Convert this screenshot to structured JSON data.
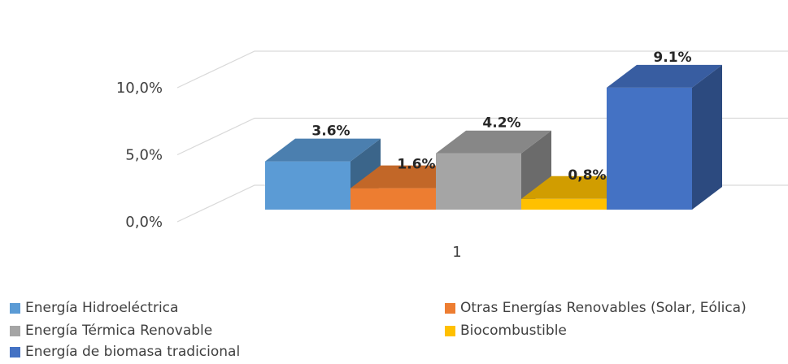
{
  "chart_data": {
    "type": "bar",
    "categories": [
      "1"
    ],
    "series": [
      {
        "name": "Energía Hidroeléctrica",
        "values": [
          3.6
        ],
        "label": "3.6%",
        "color": "#5b9bd5"
      },
      {
        "name": "Otras Energías Renovables (Solar, Eólica)",
        "values": [
          1.6
        ],
        "label": "1.6%",
        "color": "#ed7d31"
      },
      {
        "name": "Energía Térmica Renovable",
        "values": [
          4.2
        ],
        "label": "4.2%",
        "color": "#a5a5a5"
      },
      {
        "name": "Biocombustible",
        "values": [
          0.8
        ],
        "label": "0,8%",
        "color": "#ffc000"
      },
      {
        "name": "Energía de biomasa tradicional",
        "values": [
          9.1
        ],
        "label": "9.1%",
        "color": "#4472c4"
      }
    ],
    "y_ticks": [
      "0,0%",
      "5,0%",
      "10,0%"
    ],
    "ylim": [
      0,
      10
    ],
    "grid": true,
    "legend_position": "bottom",
    "style": "3d-clustered-column"
  }
}
